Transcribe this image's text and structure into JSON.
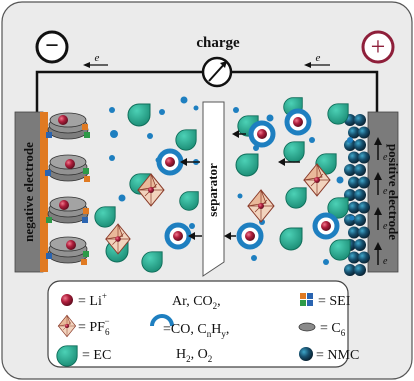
{
  "circuit": {
    "charge_label": "charge",
    "electron_left": "e",
    "electron_right": "e",
    "minus_symbol": "−",
    "plus_symbol": "+"
  },
  "electrodes": {
    "negative_label": "negative electrode",
    "positive_label": "positive electrode",
    "separator_label": "separator",
    "electron_arrow_labels": [
      "e",
      "e",
      "e",
      "e"
    ]
  },
  "legend": {
    "li": "= Li",
    "li_sup": "+",
    "pf6": "= PF",
    "pf6_sub": "6",
    "pf6_sup": "−",
    "ec": "= EC",
    "gas_line1": "Ar, CO",
    "gas_line1_sub": "2",
    "gas_line2_prefix": "=CO, C",
    "gas_line2_n": "n",
    "gas_line2_mid": "H",
    "gas_line2_y": "y",
    "gas_line3_prefix": "H",
    "gas_line3_sub2": "2",
    "gas_line3_mid": ", O",
    "gas_line3_subo": "2",
    "sei": "= SEI",
    "c6": "= C",
    "c6_sub": "6",
    "nmc": "= NMC"
  },
  "colors": {
    "panel_bg": "#ebebeb",
    "electrolyte_blue": "#1e7fc0",
    "ec_teal": "#23a98f",
    "li_red": "#9c1a33",
    "electrode_orange": "#e07a22",
    "current_collector_gray": "#7b7b7b",
    "pf6_fill": "#f2d3bd",
    "nmc_dark": "#1b4a66",
    "plus_border": "#8e1f3a"
  }
}
